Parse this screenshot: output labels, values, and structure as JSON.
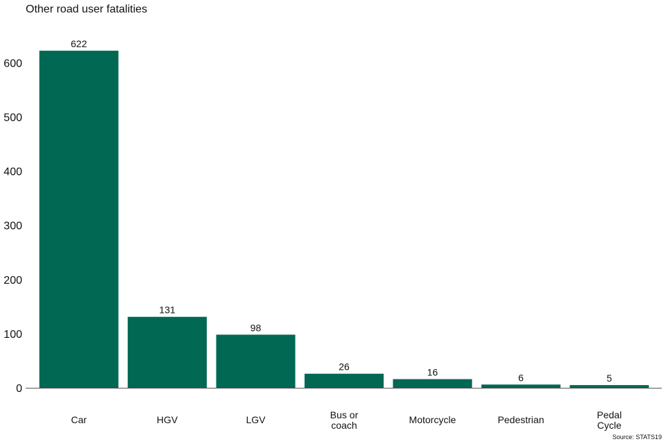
{
  "chart_data": {
    "type": "bar",
    "title": "Other road user fatalities",
    "xlabel": "",
    "ylabel": "",
    "categories": [
      [
        "Car"
      ],
      [
        "HGV"
      ],
      [
        "LGV"
      ],
      [
        "Bus or",
        "coach"
      ],
      [
        "Motorcycle"
      ],
      [
        "Pedestrian"
      ],
      [
        "Pedal",
        "Cycle"
      ]
    ],
    "values": [
      622,
      131,
      98,
      26,
      16,
      6,
      5
    ],
    "data_labels": [
      "622",
      "131",
      "98",
      "26",
      "16",
      "6",
      "5"
    ],
    "ylim": [
      0,
      650
    ],
    "yticks": [
      "0",
      "100",
      "200",
      "300",
      "400",
      "500",
      "600"
    ],
    "bar_color": "#006853",
    "grid": false,
    "source": "Source: STATS19"
  }
}
